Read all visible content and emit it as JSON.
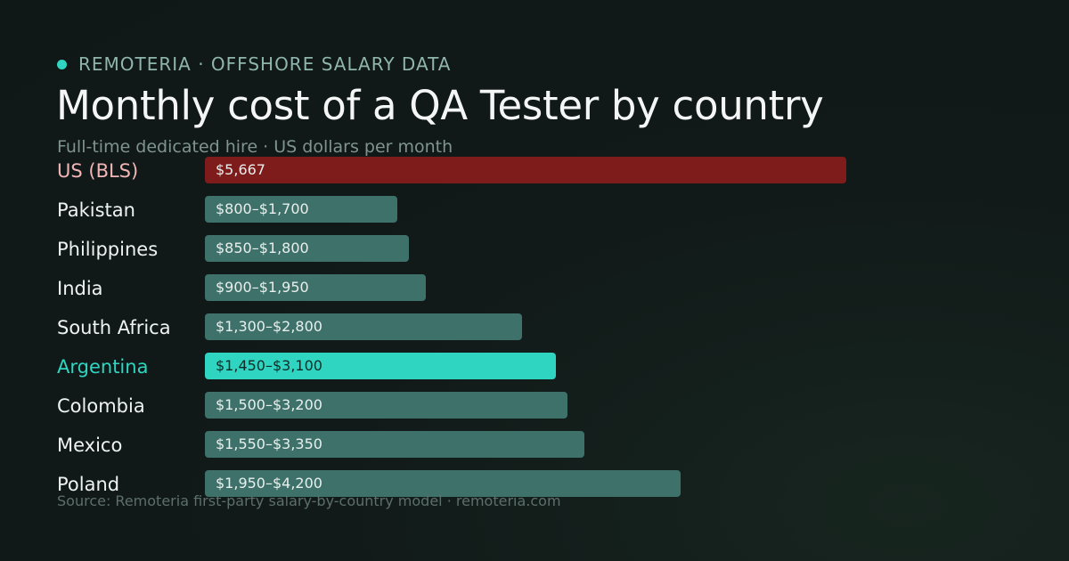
{
  "header": {
    "kicker": "REMOTERIA · OFFSHORE SALARY DATA",
    "title": "Monthly cost of a QA Tester by country",
    "subtitle": "Full-time dedicated hire · US dollars per month"
  },
  "footer": {
    "source": "Source: Remoteria first-party salary-by-country model · remoteria.com"
  },
  "colors": {
    "accent": "#2fd5c1",
    "benchmark_bar": "#7e1c1c",
    "benchmark_label": "#f2b6b6",
    "default_bar": "#3f716b",
    "highlight_bar": "#2fd5c1",
    "highlight_label": "#2fd5c1",
    "highlight_bar_text": "#0f2b27"
  },
  "chart_data": {
    "type": "bar",
    "orientation": "horizontal",
    "title": "Monthly cost of a QA Tester by country",
    "subtitle": "Full-time dedicated hire · US dollars per month",
    "xlabel": "",
    "ylabel": "",
    "xlim": [
      0,
      5667
    ],
    "grid": false,
    "legend": "none",
    "categories": [
      "US (BLS)",
      "Pakistan",
      "Philippines",
      "India",
      "South Africa",
      "Argentina",
      "Colombia",
      "Mexico",
      "Poland"
    ],
    "bars": [
      {
        "category": "US (BLS)",
        "low": null,
        "high": 5667,
        "label": "$5,667",
        "style": "benchmark"
      },
      {
        "category": "Pakistan",
        "low": 800,
        "high": 1700,
        "label": "$800–$1,700",
        "style": "default"
      },
      {
        "category": "Philippines",
        "low": 850,
        "high": 1800,
        "label": "$850–$1,800",
        "style": "default"
      },
      {
        "category": "India",
        "low": 900,
        "high": 1950,
        "label": "$900–$1,950",
        "style": "default"
      },
      {
        "category": "South Africa",
        "low": 1300,
        "high": 2800,
        "label": "$1,300–$2,800",
        "style": "default"
      },
      {
        "category": "Argentina",
        "low": 1450,
        "high": 3100,
        "label": "$1,450–$3,100",
        "style": "highlight"
      },
      {
        "category": "Colombia",
        "low": 1500,
        "high": 3200,
        "label": "$1,500–$3,200",
        "style": "default"
      },
      {
        "category": "Mexico",
        "low": 1550,
        "high": 3350,
        "label": "$1,550–$3,350",
        "style": "default"
      },
      {
        "category": "Poland",
        "low": 1950,
        "high": 4200,
        "label": "$1,950–$4,200",
        "style": "default"
      }
    ]
  }
}
